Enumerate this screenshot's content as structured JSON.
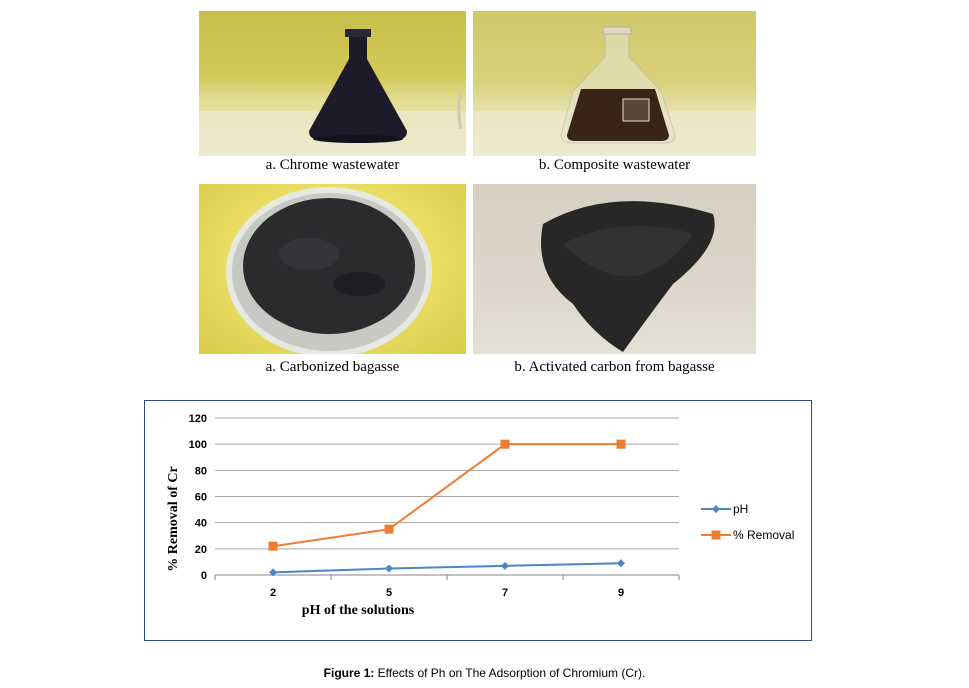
{
  "photos": [
    {
      "caption": "a.   Chrome wastewater"
    },
    {
      "caption": "b. Composite wastewater"
    },
    {
      "caption": "a. Carbonized bagasse"
    },
    {
      "caption": "b. Activated carbon from bagasse"
    }
  ],
  "figure": {
    "label": "Figure 1:",
    "text": " Effects of Ph on The Adsorption of Chromium (Cr)."
  },
  "chart_data": {
    "type": "line",
    "categories": [
      "2",
      "5",
      "7",
      "9"
    ],
    "series": [
      {
        "name": "pH",
        "values": [
          2,
          5,
          7,
          9
        ],
        "color": "#4a86c8",
        "marker": "diamond"
      },
      {
        "name": "% Removal",
        "values": [
          22,
          35,
          100,
          100
        ],
        "color": "#ed7d31",
        "marker": "square"
      }
    ],
    "xlabel": "pH of the solutions",
    "ylabel": "% Removal of Cr",
    "ylim": [
      0,
      120
    ],
    "yticks": [
      0,
      20,
      40,
      60,
      80,
      100,
      120
    ],
    "grid": true,
    "legend": "right"
  }
}
